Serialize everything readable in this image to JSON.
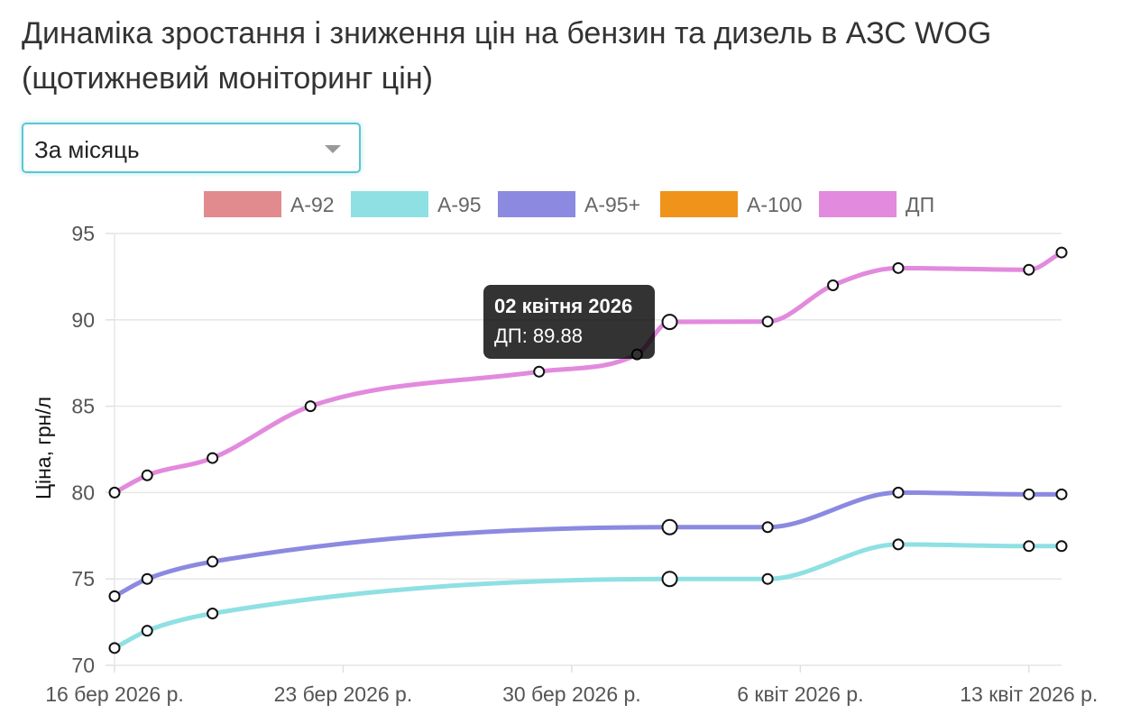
{
  "title": "Динаміка зростання і зниження цін на бензин та дизель в АЗС WOG (щотижневий моніторинг цін)",
  "period_select": {
    "value": "За місяць",
    "icon": "chevron-down-icon"
  },
  "tooltip": {
    "title": "02 квітня 2026",
    "body": "ДП: 89.88"
  },
  "chart_data": {
    "type": "line",
    "ylabel": "Ціна, грн/л",
    "ylim": [
      70,
      95
    ],
    "yticks": [
      "95",
      "90",
      "85",
      "80",
      "75",
      "70"
    ],
    "xlim": [
      "2026-03-16",
      "2026-04-14"
    ],
    "xticks": [
      {
        "date": "2026-03-16",
        "label": "16 бер 2026 р."
      },
      {
        "date": "2026-03-23",
        "label": "23 бер 2026 р."
      },
      {
        "date": "2026-03-30",
        "label": "30 бер 2026 р."
      },
      {
        "date": "2026-04-06",
        "label": "6 квіт 2026 р."
      },
      {
        "date": "2026-04-13",
        "label": "13 квіт 2026 р."
      }
    ],
    "grid": true,
    "legend": "top-center",
    "highlight_date": "2026-04-02",
    "series": [
      {
        "name": "А-92",
        "color": "#e28b8f",
        "points": []
      },
      {
        "name": "А-95",
        "color": "#8fe0e3",
        "points": [
          [
            "2026-03-16",
            71.0
          ],
          [
            "2026-03-17",
            72.0
          ],
          [
            "2026-03-19",
            73.0
          ],
          [
            "2026-04-02",
            75.0
          ],
          [
            "2026-04-05",
            75.0
          ],
          [
            "2026-04-09",
            77.0
          ],
          [
            "2026-04-13",
            76.9
          ],
          [
            "2026-04-14",
            76.9
          ]
        ]
      },
      {
        "name": "А-95+",
        "color": "#8b8ae0",
        "points": [
          [
            "2026-03-16",
            74.0
          ],
          [
            "2026-03-17",
            75.0
          ],
          [
            "2026-03-19",
            76.0
          ],
          [
            "2026-04-02",
            78.0
          ],
          [
            "2026-04-05",
            78.0
          ],
          [
            "2026-04-09",
            80.0
          ],
          [
            "2026-04-13",
            79.9
          ],
          [
            "2026-04-14",
            79.9
          ]
        ]
      },
      {
        "name": "А-100",
        "color": "#f0931a",
        "points": []
      },
      {
        "name": "ДП",
        "color": "#e28add",
        "points": [
          [
            "2026-03-16",
            80.0
          ],
          [
            "2026-03-17",
            81.0
          ],
          [
            "2026-03-19",
            82.0
          ],
          [
            "2026-03-22",
            85.0
          ],
          [
            "2026-03-29",
            87.0
          ],
          [
            "2026-04-01",
            88.0
          ],
          [
            "2026-04-02",
            89.88
          ],
          [
            "2026-04-05",
            89.9
          ],
          [
            "2026-04-07",
            92.0
          ],
          [
            "2026-04-09",
            93.0
          ],
          [
            "2026-04-13",
            92.9
          ],
          [
            "2026-04-14",
            93.9
          ]
        ]
      }
    ]
  }
}
